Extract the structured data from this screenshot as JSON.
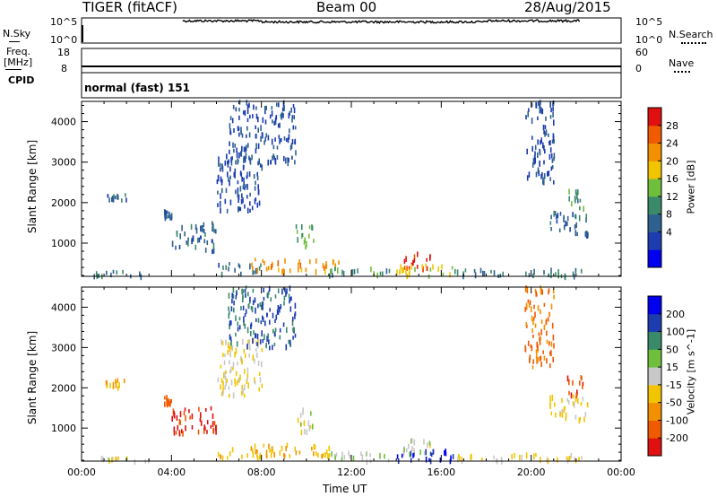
{
  "header": {
    "radar": "TIGER (fitACF)",
    "beam": "Beam 00",
    "date": "28/Aug/2015"
  },
  "status": {
    "nsky_label": "N.Sky",
    "nsearch_label": "N.Search",
    "freq_label_line1": "Freq.",
    "freq_label_line2": "[MHz]",
    "nave_label": "Nave",
    "cpid_label": "CPID",
    "nsky_ticks": [
      "10^5",
      "10^0"
    ],
    "nsearch_ticks": [
      "10^5",
      "10^0"
    ],
    "freq_ticks": [
      "18",
      "8"
    ],
    "nave_ticks": [
      "60",
      "0"
    ],
    "cpid_text": "normal (fast) 151"
  },
  "colors": {
    "power_scale": [
      "#0000ee",
      "#1c3cb0",
      "#2e6090",
      "#3a8a6a",
      "#6fbf3c",
      "#f2c400",
      "#f39000",
      "#f05a00",
      "#e01010"
    ],
    "velocity_scale": [
      "#e01010",
      "#f05a00",
      "#f39000",
      "#f2c400",
      "#c8c8c8",
      "#6fbf3c",
      "#3a8a6a",
      "#1c3cb0",
      "#0000ee"
    ]
  },
  "chart_data": [
    {
      "type": "heatmap",
      "title": "",
      "xlabel": "",
      "ylabel": "Slant Range [km]",
      "x_ticks": [
        "00:00",
        "04:00",
        "08:00",
        "12:00",
        "16:00",
        "20:00",
        "00:00"
      ],
      "y_ticks": [
        1000,
        2000,
        3000,
        4000
      ],
      "ylim": [
        180,
        4500
      ],
      "colorbar": {
        "label": "Power [dB]",
        "ticks": [
          "28",
          "24",
          "20",
          "16",
          "12",
          "8",
          "4"
        ],
        "range": [
          0,
          30
        ]
      },
      "echo_regions": [
        {
          "t": [
            0.5,
            3.0
          ],
          "r": [
            180,
            300
          ],
          "value": 10
        },
        {
          "t": [
            1.0,
            2.0
          ],
          "r": [
            2000,
            2200
          ],
          "value": 8
        },
        {
          "t": [
            3.5,
            4.0
          ],
          "r": [
            1600,
            1800
          ],
          "value": 8
        },
        {
          "t": [
            4.0,
            6.0
          ],
          "r": [
            800,
            1500
          ],
          "value": 8
        },
        {
          "t": [
            6.0,
            8.0
          ],
          "r": [
            1800,
            3200
          ],
          "value": 6
        },
        {
          "t": [
            6.5,
            9.5
          ],
          "r": [
            3000,
            4500
          ],
          "value": 6
        },
        {
          "t": [
            6.0,
            8.0
          ],
          "r": [
            250,
            500
          ],
          "value": 9
        },
        {
          "t": [
            7.5,
            11.5
          ],
          "r": [
            300,
            600
          ],
          "value": 22
        },
        {
          "t": [
            9.5,
            10.3
          ],
          "r": [
            900,
            1500
          ],
          "value": 14
        },
        {
          "t": [
            11.0,
            14.0
          ],
          "r": [
            180,
            400
          ],
          "value": 12
        },
        {
          "t": [
            14.2,
            15.5
          ],
          "r": [
            350,
            750
          ],
          "value": 28
        },
        {
          "t": [
            14.0,
            16.5
          ],
          "r": [
            180,
            450
          ],
          "value": 18
        },
        {
          "t": [
            16.5,
            22.5
          ],
          "r": [
            180,
            350
          ],
          "value": 10
        },
        {
          "t": [
            19.7,
            21.0
          ],
          "r": [
            2500,
            4500
          ],
          "value": 6
        },
        {
          "t": [
            20.8,
            22.5
          ],
          "r": [
            1200,
            1800
          ],
          "value": 8
        },
        {
          "t": [
            21.5,
            22.3
          ],
          "r": [
            1800,
            2300
          ],
          "value": 12
        }
      ]
    },
    {
      "type": "heatmap",
      "title": "",
      "xlabel": "Time UT",
      "ylabel": "Slant Range [km]",
      "x_ticks": [
        "00:00",
        "04:00",
        "08:00",
        "12:00",
        "16:00",
        "20:00",
        "00:00"
      ],
      "y_ticks": [
        1000,
        2000,
        3000,
        4000
      ],
      "ylim": [
        180,
        4500
      ],
      "colorbar": {
        "label": "Velocity [m s^-1]",
        "ticks": [
          "200",
          "100",
          "50",
          "15",
          "-15",
          "-50",
          "-100",
          "-200"
        ],
        "range": [
          -250,
          250
        ]
      },
      "echo_regions": [
        {
          "t": [
            0.5,
            3.0
          ],
          "r": [
            180,
            300
          ],
          "value": 0
        },
        {
          "t": [
            1.0,
            2.0
          ],
          "r": [
            2000,
            2200
          ],
          "value": -80
        },
        {
          "t": [
            3.5,
            4.0
          ],
          "r": [
            1600,
            1800
          ],
          "value": -150
        },
        {
          "t": [
            4.0,
            6.0
          ],
          "r": [
            800,
            1500
          ],
          "value": -200
        },
        {
          "t": [
            6.0,
            8.0
          ],
          "r": [
            1800,
            3200
          ],
          "value": -30
        },
        {
          "t": [
            6.5,
            9.5
          ],
          "r": [
            3000,
            4500
          ],
          "value": 150
        },
        {
          "t": [
            6.0,
            8.0
          ],
          "r": [
            250,
            500
          ],
          "value": -60
        },
        {
          "t": [
            7.5,
            11.5
          ],
          "r": [
            300,
            600
          ],
          "value": -80
        },
        {
          "t": [
            9.5,
            10.3
          ],
          "r": [
            900,
            1500
          ],
          "value": 0
        },
        {
          "t": [
            11.0,
            14.0
          ],
          "r": [
            180,
            400
          ],
          "value": 30
        },
        {
          "t": [
            14.2,
            15.5
          ],
          "r": [
            350,
            750
          ],
          "value": 0
        },
        {
          "t": [
            14.0,
            16.5
          ],
          "r": [
            180,
            450
          ],
          "value": 200
        },
        {
          "t": [
            16.5,
            22.5
          ],
          "r": [
            180,
            350
          ],
          "value": -30
        },
        {
          "t": [
            19.7,
            21.0
          ],
          "r": [
            2500,
            4500
          ],
          "value": -150
        },
        {
          "t": [
            20.8,
            22.5
          ],
          "r": [
            1200,
            1800
          ],
          "value": -40
        },
        {
          "t": [
            21.5,
            22.3
          ],
          "r": [
            1800,
            2300
          ],
          "value": -200
        }
      ]
    }
  ]
}
